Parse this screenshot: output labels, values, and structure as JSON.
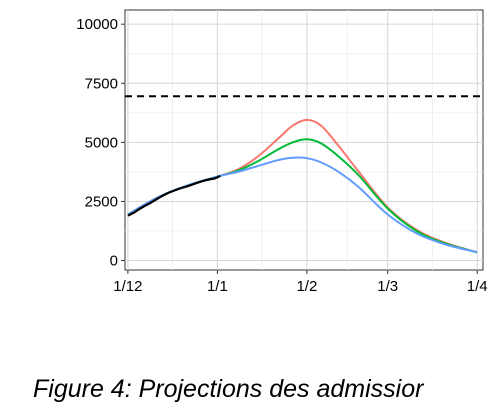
{
  "caption": "Figure 4: Projections des admissior",
  "chart_data": {
    "type": "line",
    "title": "",
    "xlabel": "",
    "ylabel": "",
    "x_axis": {
      "type": "date",
      "range": [
        "2020-11-30",
        "2021-04-03"
      ],
      "tick_dates": [
        "2020-12-01",
        "2021-01-01",
        "2021-02-01",
        "2021-03-01",
        "2021-04-01"
      ],
      "tick_labels": [
        "1/12",
        "1/1",
        "1/2",
        "1/3",
        "1/4"
      ]
    },
    "y_axis": {
      "range": [
        -400,
        10600
      ],
      "ticks": [
        0,
        2500,
        5000,
        7500,
        10000
      ],
      "tick_labels": [
        "0",
        "2500",
        "5000",
        "7500",
        "10000"
      ]
    },
    "grid": true,
    "legend": "none",
    "reference_line": {
      "y": 6950,
      "color": "#000000",
      "style": "dashed"
    },
    "observed": {
      "color": "#000000",
      "x": [
        "2020-12-01",
        "2020-12-03",
        "2020-12-05",
        "2020-12-07",
        "2020-12-09",
        "2020-12-11",
        "2020-12-13",
        "2020-12-15",
        "2020-12-17",
        "2020-12-19",
        "2020-12-21",
        "2020-12-23",
        "2020-12-25",
        "2020-12-27",
        "2020-12-29",
        "2020-12-31",
        "2021-01-01",
        "2021-01-02"
      ],
      "y": [
        1900,
        2020,
        2180,
        2320,
        2450,
        2600,
        2740,
        2860,
        2960,
        3050,
        3120,
        3200,
        3290,
        3370,
        3430,
        3470,
        3520,
        3580
      ]
    },
    "series": [
      {
        "color": "#f8766d",
        "x": [
          "2020-12-01",
          "2020-12-11",
          "2020-12-21",
          "2021-01-01",
          "2021-01-08",
          "2021-01-15",
          "2021-01-22",
          "2021-01-27",
          "2021-02-01",
          "2021-02-06",
          "2021-02-12",
          "2021-02-19",
          "2021-03-01",
          "2021-03-11",
          "2021-03-21",
          "2021-04-01"
        ],
        "y": [
          1950,
          2650,
          3150,
          3550,
          3850,
          4400,
          5150,
          5700,
          5950,
          5700,
          4850,
          3750,
          2250,
          1300,
          750,
          350
        ]
      },
      {
        "color": "#00ba38",
        "x": [
          "2020-12-01",
          "2020-12-11",
          "2020-12-21",
          "2021-01-01",
          "2021-01-08",
          "2021-01-15",
          "2021-01-22",
          "2021-01-27",
          "2021-02-01",
          "2021-02-06",
          "2021-02-12",
          "2021-02-19",
          "2021-03-01",
          "2021-03-11",
          "2021-03-21",
          "2021-04-01"
        ],
        "y": [
          1950,
          2650,
          3150,
          3550,
          3800,
          4200,
          4700,
          5000,
          5130,
          4950,
          4400,
          3600,
          2200,
          1250,
          720,
          350
        ]
      },
      {
        "color": "#619cff",
        "x": [
          "2020-12-01",
          "2020-12-11",
          "2020-12-21",
          "2021-01-01",
          "2021-01-08",
          "2021-01-15",
          "2021-01-22",
          "2021-01-27",
          "2021-02-01",
          "2021-02-06",
          "2021-02-12",
          "2021-02-19",
          "2021-03-01",
          "2021-03-11",
          "2021-03-21",
          "2021-04-01"
        ],
        "y": [
          1950,
          2650,
          3150,
          3550,
          3750,
          4000,
          4250,
          4350,
          4330,
          4150,
          3750,
          3100,
          1950,
          1150,
          680,
          350
        ]
      }
    ]
  }
}
